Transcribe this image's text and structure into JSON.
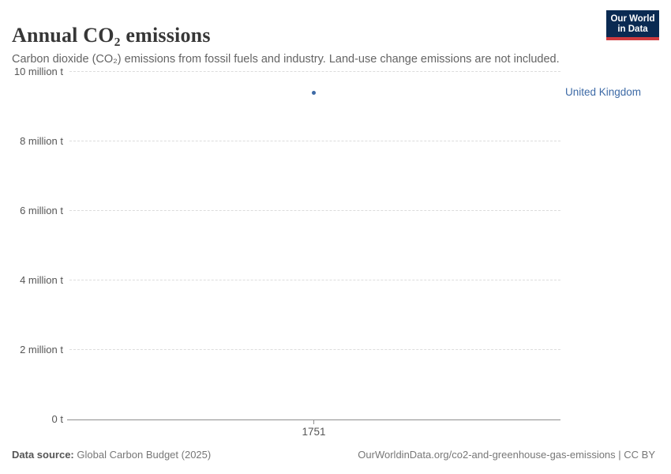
{
  "header": {
    "title": "Annual CO₂ emissions",
    "subtitle": "Carbon dioxide (CO₂) emissions from fossil fuels and industry. Land-use change emissions are not included."
  },
  "logo": {
    "line1": "Our World",
    "line2": "in Data",
    "bg_color": "#0a2a52",
    "accent_color": "#cf3a3e"
  },
  "chart_data": {
    "type": "scatter",
    "title": "Annual CO₂ emissions",
    "xlabel": "",
    "ylabel": "",
    "x": [
      1751
    ],
    "x_tick_labels": [
      "1751"
    ],
    "ylim": [
      0,
      10000000
    ],
    "grid": "horizontal-dashed",
    "legend_position": "right-of-point",
    "yticks": [
      {
        "value": 0,
        "label": "0 t"
      },
      {
        "value": 2000000,
        "label": "2 million t"
      },
      {
        "value": 4000000,
        "label": "4 million t"
      },
      {
        "value": 6000000,
        "label": "6 million t"
      },
      {
        "value": 8000000,
        "label": "8 million t"
      },
      {
        "value": 10000000,
        "label": "10 million t"
      }
    ],
    "series": [
      {
        "name": "United Kingdom",
        "color": "#3d6aa6",
        "points": [
          {
            "x": 1751,
            "y": 9400000
          }
        ]
      }
    ]
  },
  "footer": {
    "source_label": "Data source:",
    "source_value": "Global Carbon Budget (2025)",
    "credit": "OurWorldinData.org/co2-and-greenhouse-gas-emissions | CC BY"
  }
}
